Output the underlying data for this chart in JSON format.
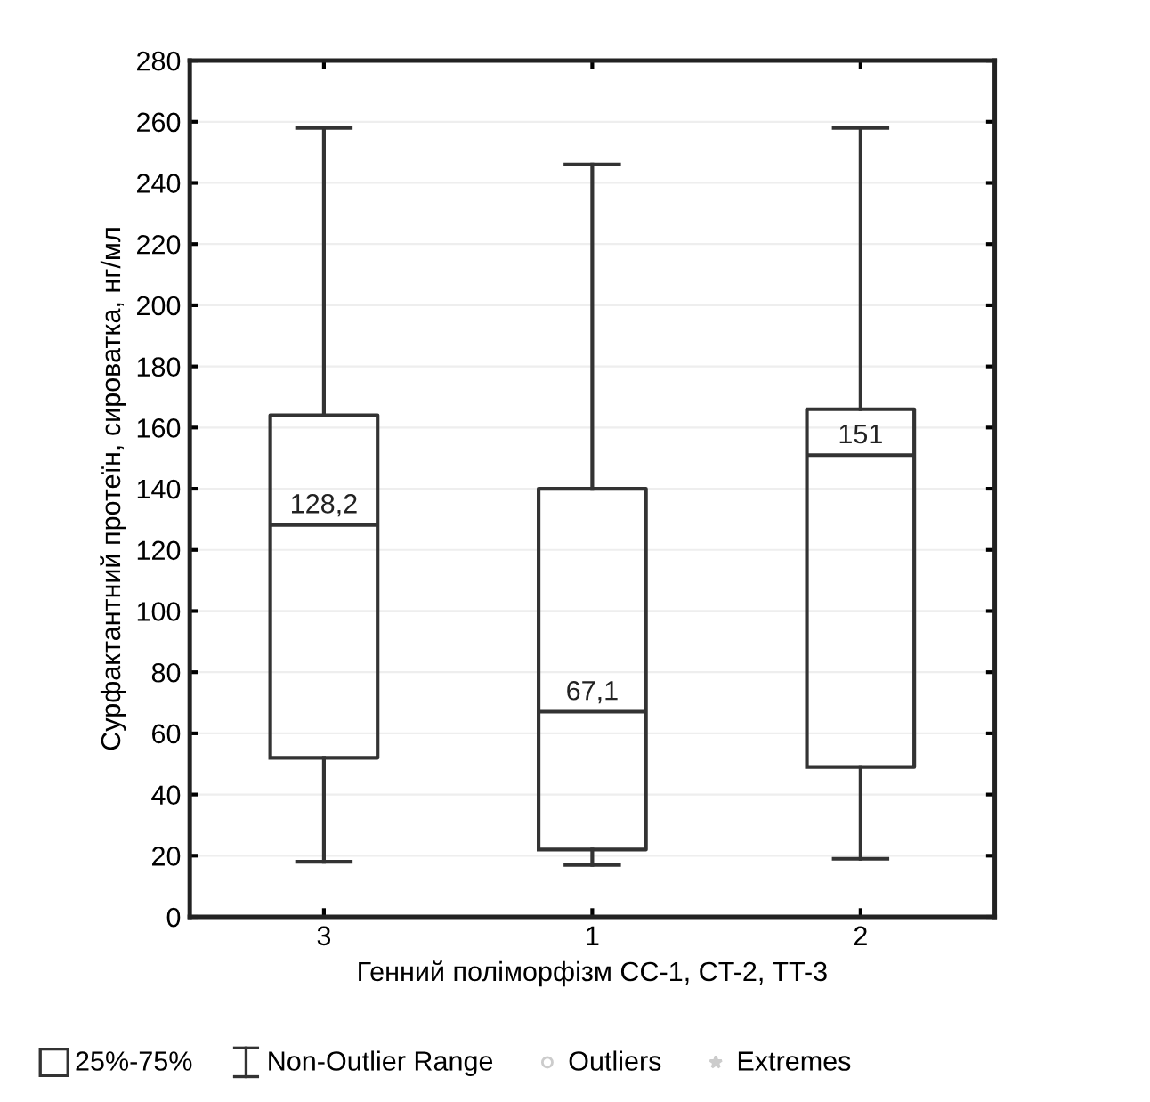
{
  "chart_data": {
    "type": "box",
    "xlabel": "Генний поліморфізм CC-1, CT-2, TT-3",
    "ylabel": "Сурфактантний протеїн, сироватка, нг/мл",
    "categories": [
      "3",
      "1",
      "2"
    ],
    "boxes": [
      {
        "low": 18,
        "q1": 52,
        "median": 128.2,
        "q3": 164,
        "high": 258
      },
      {
        "low": 17,
        "q1": 22,
        "median": 67.1,
        "q3": 140,
        "high": 246
      },
      {
        "low": 19,
        "q1": 49,
        "median": 151,
        "q3": 166,
        "high": 258
      }
    ],
    "value_labels": [
      "128,2",
      "67,1",
      "151"
    ],
    "ylim": [
      0,
      280
    ],
    "yticks": [
      0,
      20,
      40,
      60,
      80,
      100,
      120,
      140,
      160,
      180,
      200,
      220,
      240,
      260,
      280
    ],
    "grid": "y",
    "annotations": [
      "25%-75%",
      "Non-Outlier Range",
      "Outliers",
      "Extremes"
    ]
  }
}
